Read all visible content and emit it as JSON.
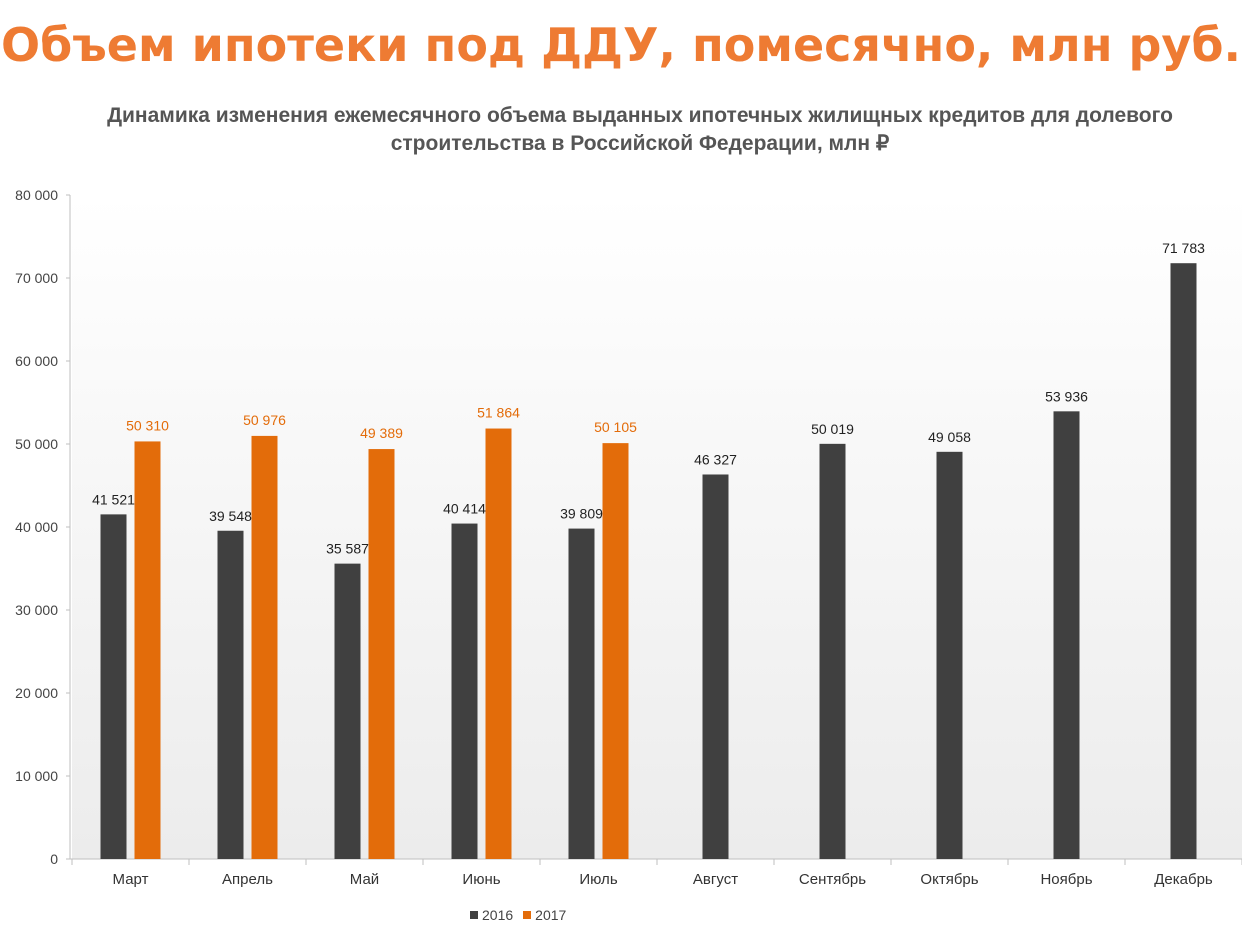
{
  "header": {
    "title": "Объем ипотеки под ДДУ, помесячно, млн руб.",
    "subtitle": "Динамика изменения ежемесячного объема выданных ипотечных жилищных кредитов для долевого строительства в Российской Федерации, млн ₽"
  },
  "colors": {
    "title": "#ee7b33",
    "series_2016": "#404040",
    "series_2017": "#e36c0a",
    "label_2017": "#e36c0a",
    "label_2016": "#222222"
  },
  "chart_data": {
    "type": "bar",
    "title": "Динамика изменения ежемесячного объема выданных ипотечных жилищных кредитов для долевого строительства в Российской Федерации, млн ₽",
    "categories": [
      "Март",
      "Апрель",
      "Май",
      "Июнь",
      "Июль",
      "Август",
      "Сентябрь",
      "Октябрь",
      "Ноябрь",
      "Декабрь"
    ],
    "series": [
      {
        "name": "2016",
        "values": [
          41521,
          39548,
          35587,
          40414,
          39809,
          46327,
          50019,
          49058,
          53936,
          71783
        ],
        "labels": [
          "41 521",
          "39 548",
          "35 587",
          "40 414",
          "39 809",
          "46 327",
          "50 019",
          "49 058",
          "53 936",
          "71 783"
        ]
      },
      {
        "name": "2017",
        "values": [
          50310,
          50976,
          49389,
          51864,
          50105,
          null,
          null,
          null,
          null,
          null
        ],
        "labels": [
          "50 310",
          "50 976",
          "49 389",
          "51 864",
          "50 105",
          null,
          null,
          null,
          null,
          null
        ]
      }
    ],
    "ylim": [
      0,
      80000
    ],
    "yticks": [
      0,
      10000,
      20000,
      30000,
      40000,
      50000,
      60000,
      70000,
      80000
    ],
    "ytick_labels": [
      "0",
      "10 000",
      "20 000",
      "30 000",
      "40 000",
      "50 000",
      "60 000",
      "70 000",
      "80 000"
    ],
    "grid": false,
    "legend_position": "bottom"
  }
}
